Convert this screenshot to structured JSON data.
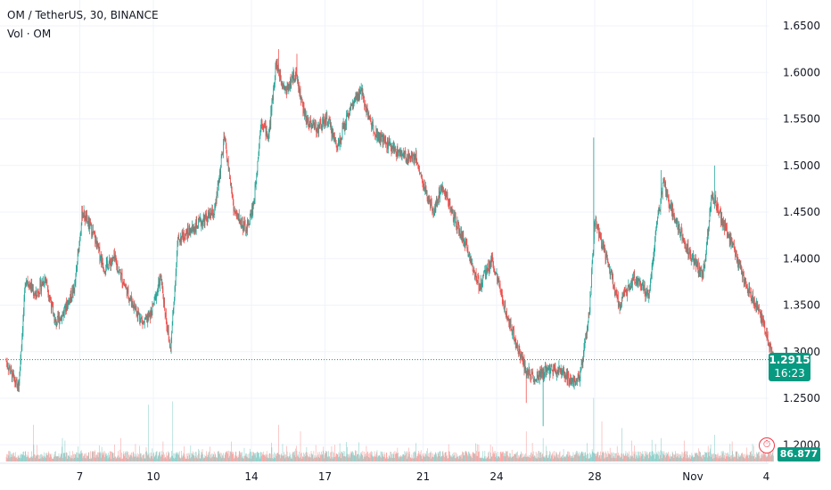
{
  "legend": {
    "symbol_line": "OM / TetherUS, 30, BINANCE",
    "volume_line": "Vol · OM"
  },
  "colors": {
    "up": "#26a69a",
    "down": "#ef5350",
    "badge": "#089981",
    "alert": "#f23645",
    "grid": "#f0f3fa",
    "axis_text": "#131722"
  },
  "icons": {
    "alert": "alert-clock-icon"
  },
  "current": {
    "price_label": "1.2915",
    "countdown": "16:23",
    "volume_label": "86.877 K"
  },
  "chart_data": {
    "type": "candlestick",
    "title": "",
    "y_axis_side": "right",
    "ylim": [
      1.19,
      1.66
    ],
    "y_ticks": [
      {
        "value": 1.2,
        "label": "1.2000"
      },
      {
        "value": 1.25,
        "label": "1.2500"
      },
      {
        "value": 1.3,
        "label": "1.3000"
      },
      {
        "value": 1.35,
        "label": "1.3500"
      },
      {
        "value": 1.4,
        "label": "1.4000"
      },
      {
        "value": 1.45,
        "label": "1.4500"
      },
      {
        "value": 1.5,
        "label": "1.5000"
      },
      {
        "value": 1.55,
        "label": "1.5500"
      },
      {
        "value": 1.6,
        "label": "1.6000"
      },
      {
        "value": 1.65,
        "label": "1.6500"
      }
    ],
    "x_range_days": [
      4.0,
      35.3
    ],
    "x_ticks": [
      {
        "day": 7,
        "label": "7"
      },
      {
        "day": 10,
        "label": "10"
      },
      {
        "day": 14,
        "label": "14"
      },
      {
        "day": 17,
        "label": "17"
      },
      {
        "day": 21,
        "label": "21"
      },
      {
        "day": 24,
        "label": "24"
      },
      {
        "day": 28,
        "label": "28"
      },
      {
        "day": 32,
        "label": "Nov"
      },
      {
        "day": 35,
        "label": "4"
      }
    ],
    "current_price": 1.2915,
    "grid": true,
    "path": [
      [
        4.0,
        1.29
      ],
      [
        4.3,
        1.27
      ],
      [
        4.5,
        1.26
      ],
      [
        4.8,
        1.38
      ],
      [
        5.2,
        1.36
      ],
      [
        5.6,
        1.38
      ],
      [
        6.0,
        1.33
      ],
      [
        6.3,
        1.34
      ],
      [
        6.8,
        1.37
      ],
      [
        7.1,
        1.45
      ],
      [
        7.5,
        1.43
      ],
      [
        8.0,
        1.39
      ],
      [
        8.4,
        1.4
      ],
      [
        9.0,
        1.36
      ],
      [
        9.6,
        1.33
      ],
      [
        9.9,
        1.34
      ],
      [
        10.3,
        1.38
      ],
      [
        10.7,
        1.3
      ],
      [
        11.0,
        1.42
      ],
      [
        11.5,
        1.43
      ],
      [
        12.0,
        1.44
      ],
      [
        12.5,
        1.45
      ],
      [
        12.9,
        1.53
      ],
      [
        13.3,
        1.45
      ],
      [
        13.8,
        1.43
      ],
      [
        14.1,
        1.46
      ],
      [
        14.4,
        1.55
      ],
      [
        14.7,
        1.53
      ],
      [
        15.0,
        1.61
      ],
      [
        15.4,
        1.58
      ],
      [
        15.8,
        1.6
      ],
      [
        16.2,
        1.55
      ],
      [
        16.7,
        1.54
      ],
      [
        17.1,
        1.55
      ],
      [
        17.5,
        1.52
      ],
      [
        18.0,
        1.56
      ],
      [
        18.5,
        1.58
      ],
      [
        18.8,
        1.55
      ],
      [
        19.2,
        1.53
      ],
      [
        19.7,
        1.52
      ],
      [
        20.2,
        1.51
      ],
      [
        20.7,
        1.51
      ],
      [
        21.0,
        1.48
      ],
      [
        21.4,
        1.45
      ],
      [
        21.8,
        1.48
      ],
      [
        22.3,
        1.44
      ],
      [
        22.8,
        1.41
      ],
      [
        23.3,
        1.37
      ],
      [
        23.8,
        1.4
      ],
      [
        24.3,
        1.35
      ],
      [
        24.8,
        1.31
      ],
      [
        25.2,
        1.28
      ],
      [
        25.6,
        1.27
      ],
      [
        26.0,
        1.28
      ],
      [
        26.5,
        1.28
      ],
      [
        27.0,
        1.27
      ],
      [
        27.4,
        1.27
      ],
      [
        27.8,
        1.35
      ],
      [
        28.0,
        1.44
      ],
      [
        28.5,
        1.4
      ],
      [
        29.0,
        1.35
      ],
      [
        29.6,
        1.38
      ],
      [
        30.2,
        1.36
      ],
      [
        30.5,
        1.43
      ],
      [
        30.8,
        1.48
      ],
      [
        31.3,
        1.44
      ],
      [
        31.8,
        1.41
      ],
      [
        32.4,
        1.38
      ],
      [
        32.8,
        1.47
      ],
      [
        33.2,
        1.44
      ],
      [
        33.7,
        1.41
      ],
      [
        34.2,
        1.37
      ],
      [
        34.6,
        1.35
      ],
      [
        35.0,
        1.32
      ],
      [
        35.3,
        1.29
      ]
    ],
    "spikes": [
      {
        "day": 27.95,
        "high": 1.53
      },
      {
        "day": 15.1,
        "high": 1.625
      },
      {
        "day": 15.85,
        "high": 1.62
      },
      {
        "day": 25.2,
        "low": 1.245
      },
      {
        "day": 25.9,
        "low": 1.22
      },
      {
        "day": 10.7,
        "low": 1.3
      },
      {
        "day": 30.7,
        "high": 1.495
      },
      {
        "day": 32.9,
        "high": 1.5
      }
    ],
    "volume_spikes": [
      {
        "day": 5.1,
        "rel": 0.55
      },
      {
        "day": 6.3,
        "rel": 0.35
      },
      {
        "day": 9.8,
        "rel": 0.85
      },
      {
        "day": 10.4,
        "rel": 0.3
      },
      {
        "day": 10.8,
        "rel": 0.9
      },
      {
        "day": 15.1,
        "rel": 0.55
      },
      {
        "day": 16.0,
        "rel": 0.45
      },
      {
        "day": 17.4,
        "rel": 0.25
      },
      {
        "day": 25.2,
        "rel": 0.45
      },
      {
        "day": 25.9,
        "rel": 0.35
      },
      {
        "day": 27.95,
        "rel": 0.95
      },
      {
        "day": 28.3,
        "rel": 0.6
      },
      {
        "day": 29.1,
        "rel": 0.5
      },
      {
        "day": 30.7,
        "rel": 0.35
      },
      {
        "day": 32.9,
        "rel": 0.4
      },
      {
        "day": 33.6,
        "rel": 0.3
      }
    ]
  }
}
